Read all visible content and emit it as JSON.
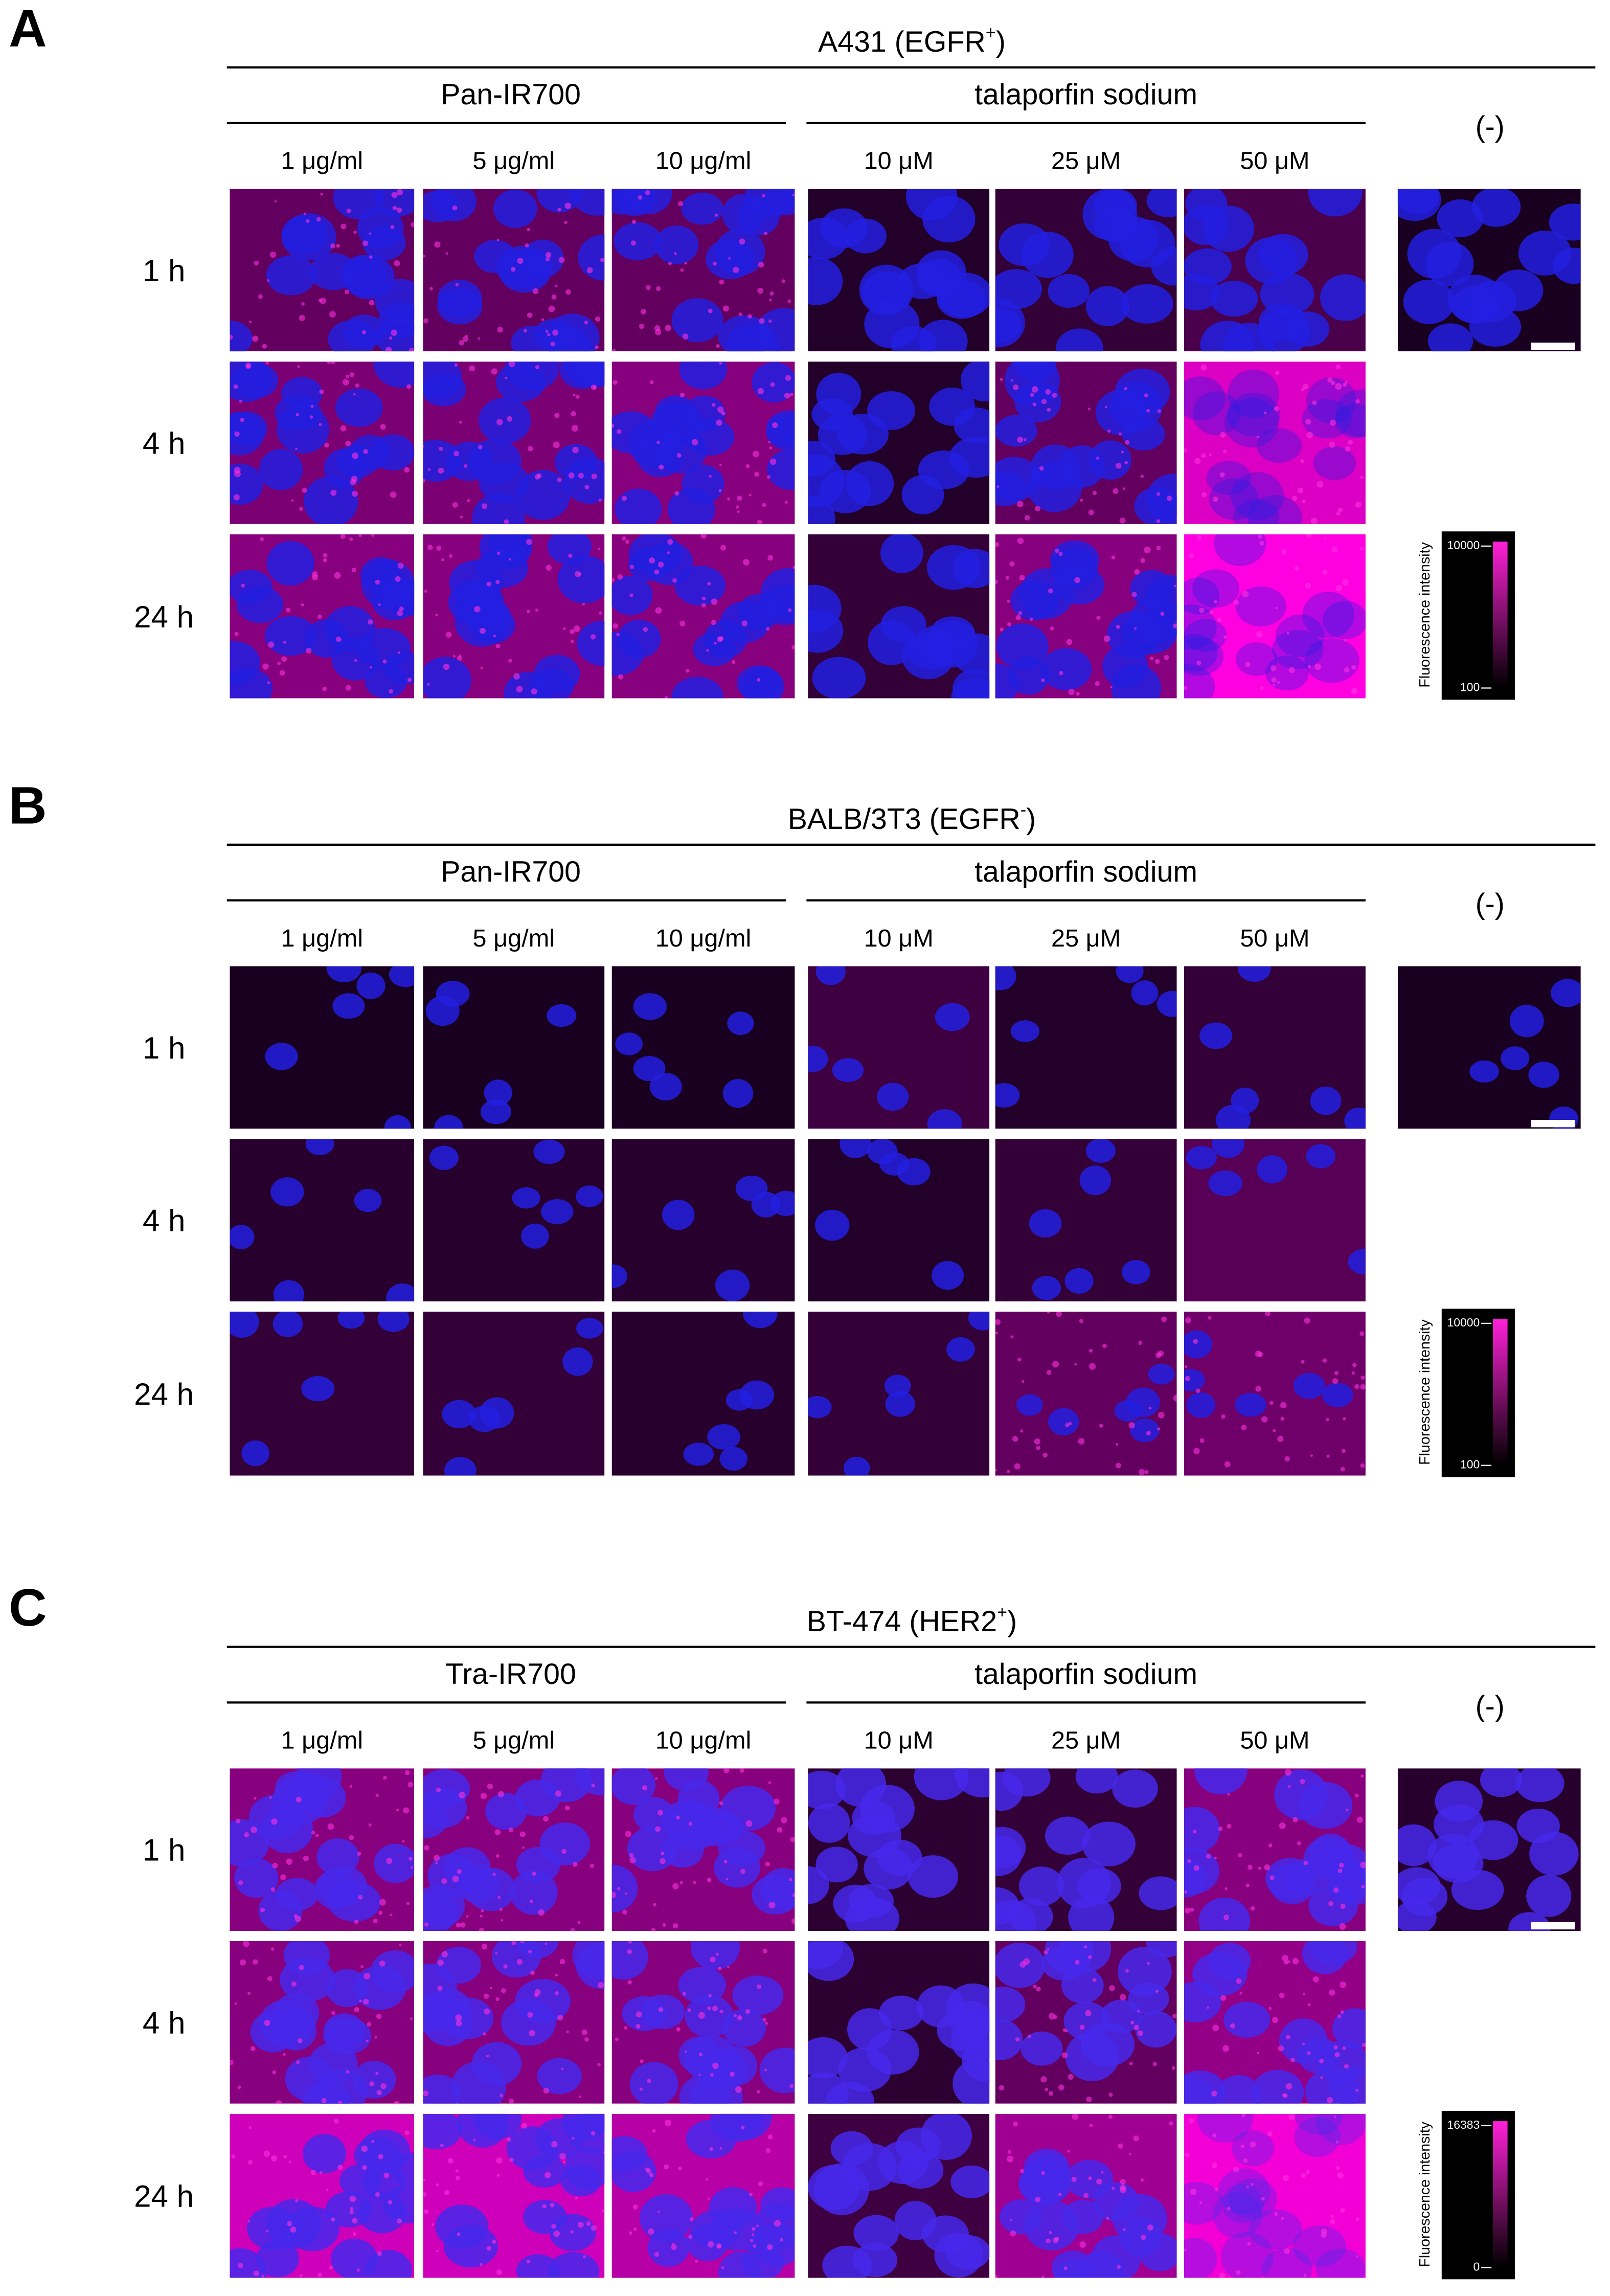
{
  "panels": [
    {
      "label": "A",
      "title": "A431 (EGFR",
      "title_sup": "+",
      "title_end": ")",
      "groups": [
        {
          "name": "Pan-IR700",
          "concentrations": [
            "1 μg/ml",
            "5 μg/ml",
            "10 μg/ml"
          ]
        },
        {
          "name": "talaporfin sodium",
          "concentrations": [
            "10 μM",
            "25 μM",
            "50 μM"
          ]
        }
      ],
      "control": "(-)",
      "times": [
        "1 h",
        "4 h",
        "24 h"
      ],
      "colorbar": {
        "label": "Fluorescence intensity",
        "max": 10000,
        "min": 100
      }
    },
    {
      "label": "B",
      "title": "BALB/3T3 (EGFR",
      "title_sup": "-",
      "title_end": ")",
      "groups": [
        {
          "name": "Pan-IR700",
          "concentrations": [
            "1 μg/ml",
            "5 μg/ml",
            "10 μg/ml"
          ]
        },
        {
          "name": "talaporfin sodium",
          "concentrations": [
            "10 μM",
            "25 μM",
            "50 μM"
          ]
        }
      ],
      "control": "(-)",
      "times": [
        "1 h",
        "4 h",
        "24 h"
      ],
      "colorbar": {
        "label": "Fluorescence intensity",
        "max": 10000,
        "min": 100
      }
    },
    {
      "label": "C",
      "title": "BT-474 (HER2",
      "title_sup": "+",
      "title_end": ")",
      "groups": [
        {
          "name": "Tra-IR700",
          "concentrations": [
            "1 μg/ml",
            "5 μg/ml",
            "10 μg/ml"
          ]
        },
        {
          "name": "talaporfin sodium",
          "concentrations": [
            "10 μM",
            "25 μM",
            "50 μM"
          ]
        }
      ],
      "control": "(-)",
      "times": [
        "1 h",
        "4 h",
        "24 h"
      ],
      "colorbar": {
        "label": "Fluorescence intensity",
        "max": 16383,
        "min": 0
      }
    }
  ]
}
